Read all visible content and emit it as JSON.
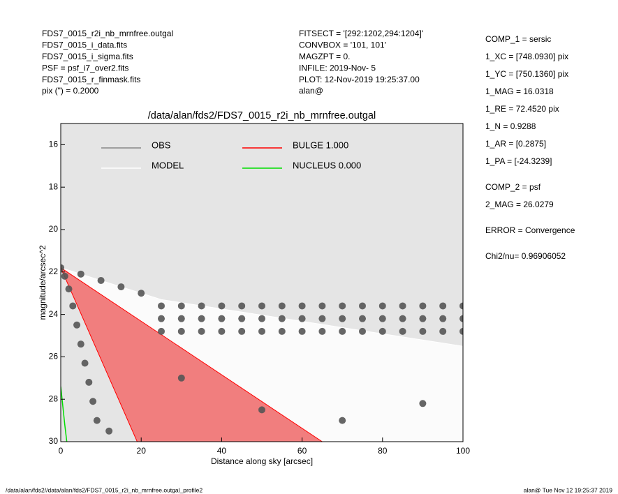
{
  "header": {
    "left": [
      "FDS7_0015_r2i_nb_mrnfree.outgal",
      "FDS7_0015_i_data.fits",
      "FDS7_0015_i_sigma.fits",
      "PSF    = psf_i7_over2.fits",
      "FDS7_0015_r_finmask.fits",
      "pix (\") =  0.2000"
    ],
    "middle": [
      "FITSECT = '[292:1202,294:1204]'",
      "CONVBOX = '101, 101'",
      "MAGZPT  =                0.",
      "INFILE: 2019-Nov- 5",
      "PLOT: 12-Nov-2019 19:25:37.00",
      "alan@"
    ]
  },
  "parameters": [
    [
      "COMP_1  = sersic",
      "1_XC    = [748.0930] pix",
      "1_YC    = [750.1360] pix",
      "1_MAG   = 16.0318",
      "1_RE    = 72.4520 pix",
      "1_N     = 0.9288",
      "1_AR    = [0.2875]",
      "1_PA    = [-24.3239]"
    ],
    [
      "COMP_2  = psf",
      "2_MAG   = 26.0279"
    ],
    [
      "ERROR   = Convergence"
    ],
    [
      "Chi2/nu=      0.96906052"
    ]
  ],
  "footer": {
    "left": "/data/alan/fds2//data/alan/fds2/FDS7_0015_r2i_nb_mrnfree.outgal_profile2",
    "right": "alan@  Tue Nov 12 19:25:37 2019"
  },
  "chart_data": {
    "type": "scatter",
    "title": "/data/alan/fds2/FDS7_0015_r2i_nb_mrnfree.outgal",
    "x_label": "Distance along sky [arcsec]",
    "y_label": "magnitude/arcsec^2",
    "xlim": [
      0,
      100
    ],
    "ylim": [
      15,
      30
    ],
    "y_inverted": true,
    "xticks": [
      0,
      20,
      40,
      60,
      80,
      100
    ],
    "yticks": [
      16,
      18,
      20,
      22,
      24,
      26,
      28,
      30
    ],
    "background": "#e5e5e5",
    "series": [
      {
        "name": "OBS",
        "color": "#555555",
        "style": "points",
        "x": [
          0,
          1,
          2,
          3,
          4,
          5,
          6,
          7,
          8,
          9,
          5,
          10,
          15,
          20,
          25,
          30,
          35,
          40,
          45,
          50,
          55,
          60,
          65,
          70,
          75,
          80,
          85,
          90,
          95,
          100,
          25,
          30,
          35,
          40,
          45,
          50,
          55,
          60,
          65,
          70,
          75,
          80,
          85,
          90,
          95,
          100,
          25,
          30,
          35,
          40,
          45,
          50,
          55,
          60,
          65,
          70,
          75,
          80,
          85,
          90,
          95,
          100,
          12,
          30,
          50,
          70,
          90
        ],
        "values": [
          21.8,
          22.2,
          22.8,
          23.6,
          24.5,
          25.4,
          26.3,
          27.2,
          28.1,
          29.0,
          22.1,
          22.4,
          22.7,
          23.0,
          23.6,
          23.6,
          23.6,
          23.6,
          23.6,
          23.6,
          23.6,
          23.6,
          23.6,
          23.6,
          23.6,
          23.6,
          23.6,
          23.6,
          23.6,
          23.6,
          24.2,
          24.2,
          24.2,
          24.2,
          24.2,
          24.2,
          24.2,
          24.2,
          24.2,
          24.2,
          24.2,
          24.2,
          24.2,
          24.2,
          24.2,
          24.2,
          24.8,
          24.8,
          24.8,
          24.8,
          24.8,
          24.8,
          24.8,
          24.8,
          24.8,
          24.8,
          24.8,
          24.8,
          24.8,
          24.8,
          24.8,
          24.8,
          29.5,
          27,
          28.5,
          29,
          28.2
        ]
      },
      {
        "name": "MODEL",
        "color": "#ffffff",
        "style": "area",
        "x": [
          0,
          25,
          100,
          100,
          65
        ],
        "values": [
          21.8,
          23.3,
          25.5,
          30,
          30
        ]
      },
      {
        "name": "BULGE  1.000",
        "color": "#ff0000",
        "style": "area",
        "x": [
          0,
          65,
          19
        ],
        "values": [
          21.8,
          30,
          30
        ]
      },
      {
        "name": "NUCLEUS  0.000",
        "color": "#00dd00",
        "style": "line",
        "x": [
          0,
          0.5,
          1,
          1.5
        ],
        "values": [
          27.4,
          28.3,
          29.2,
          30
        ]
      }
    ]
  }
}
